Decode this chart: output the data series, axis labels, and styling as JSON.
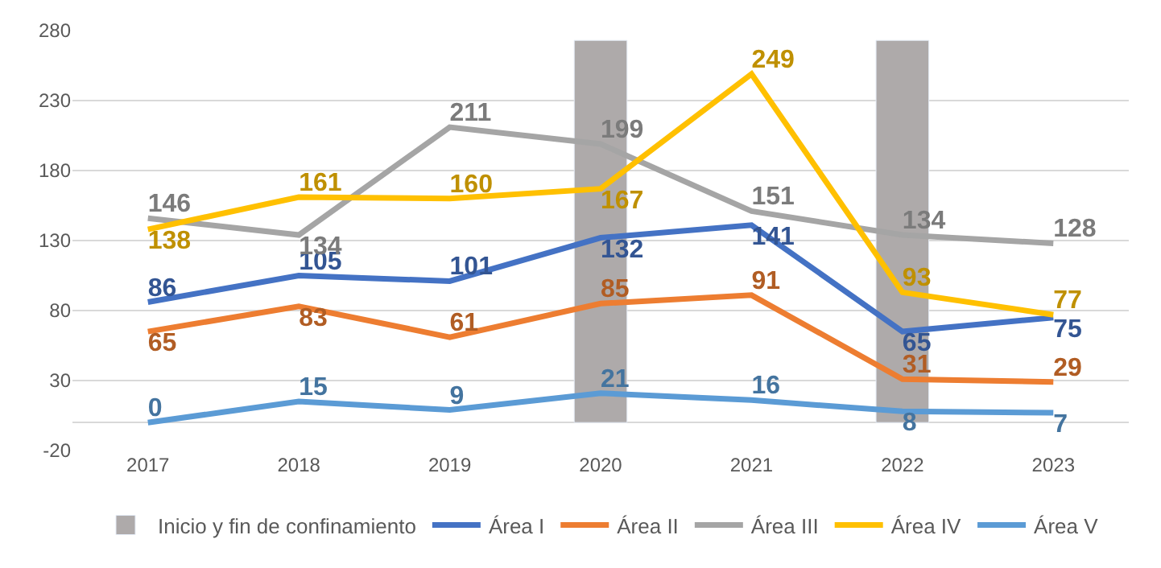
{
  "chart_data": {
    "type": "line",
    "categories": [
      "2017",
      "2018",
      "2019",
      "2020",
      "2021",
      "2022",
      "2023"
    ],
    "ylim": [
      -20,
      280
    ],
    "yticks": [
      -20,
      30,
      80,
      130,
      180,
      230,
      280
    ],
    "grid": "y",
    "legend": "bottom",
    "series": [
      {
        "name": "Inicio y fin de confinamiento",
        "type": "bar",
        "color": "#aeaaaa",
        "values": [
          null,
          null,
          null,
          273,
          null,
          273,
          null
        ]
      },
      {
        "name": "Área I",
        "color": "#4472c4",
        "values": [
          86,
          105,
          101,
          132,
          141,
          65,
          75
        ],
        "value_labels": [
          "86",
          "105",
          "101",
          "132",
          "141",
          "65",
          "75"
        ]
      },
      {
        "name": "Área II",
        "color": "#ed7d31",
        "values": [
          65,
          83,
          61,
          85,
          91,
          31,
          29
        ],
        "value_labels": [
          "65",
          "83",
          "61",
          "85",
          "91",
          "31",
          "29"
        ]
      },
      {
        "name": "Área III",
        "color": "#a5a5a5",
        "values": [
          146,
          134,
          211,
          199,
          151,
          134,
          128
        ],
        "value_labels": [
          "146",
          "134",
          "211",
          "199",
          "151",
          "134",
          "128"
        ]
      },
      {
        "name": "Área IV",
        "color": "#ffc000",
        "values": [
          138,
          161,
          160,
          167,
          249,
          93,
          77
        ],
        "value_labels": [
          "138",
          "161",
          "160",
          "167",
          "249",
          "93",
          "77"
        ]
      },
      {
        "name": "Área V",
        "color": "#5b9bd5",
        "values": [
          0,
          15,
          9,
          21,
          16,
          8,
          7
        ],
        "value_labels": [
          "0",
          "15",
          "9",
          "21",
          "16",
          "8",
          "7"
        ]
      }
    ]
  }
}
